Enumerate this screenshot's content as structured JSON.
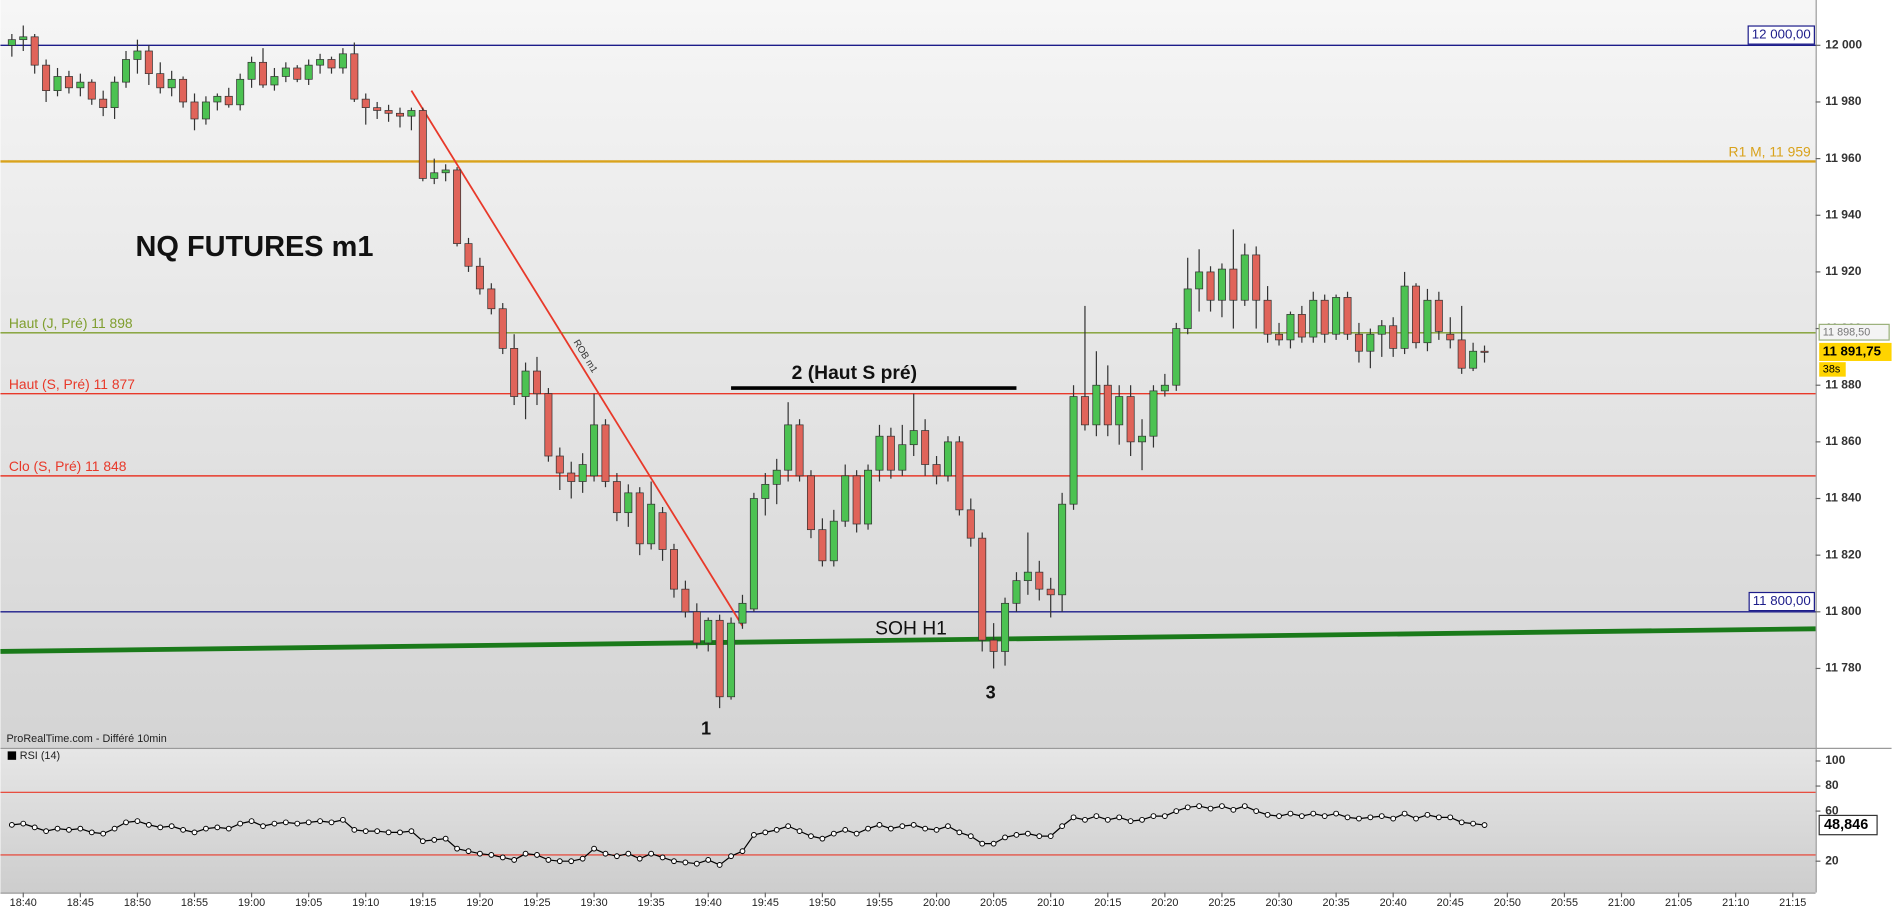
{
  "chart_data": {
    "type": "candlestick",
    "title": "NQ FUTURES m1",
    "source": "ProRealTime.com - Différé 10min",
    "x": [
      "18:39",
      "18:40",
      "18:41",
      "18:42",
      "18:43",
      "18:44",
      "18:45",
      "18:46",
      "18:47",
      "18:48",
      "18:49",
      "18:50",
      "18:51",
      "18:52",
      "18:53",
      "18:54",
      "18:55",
      "18:56",
      "18:57",
      "18:58",
      "18:59",
      "19:00",
      "19:01",
      "19:02",
      "19:03",
      "19:04",
      "19:05",
      "19:06",
      "19:07",
      "19:08",
      "19:09",
      "19:10",
      "19:11",
      "19:12",
      "19:13",
      "19:14",
      "19:15",
      "19:16",
      "19:17",
      "19:18",
      "19:19",
      "19:20",
      "19:21",
      "19:22",
      "19:23",
      "19:24",
      "19:25",
      "19:26",
      "19:27",
      "19:28",
      "19:29",
      "19:30",
      "19:31",
      "19:32",
      "19:33",
      "19:34",
      "19:35",
      "19:36",
      "19:37",
      "19:38",
      "19:39",
      "19:40",
      "19:41",
      "19:42",
      "19:43",
      "19:44",
      "19:45",
      "19:46",
      "19:47",
      "19:48",
      "19:49",
      "19:50",
      "19:51",
      "19:52",
      "19:53",
      "19:54",
      "19:55",
      "19:56",
      "19:57",
      "19:58",
      "19:59",
      "20:00",
      "20:01",
      "20:02",
      "20:03",
      "20:04",
      "20:05",
      "20:06",
      "20:07",
      "20:08",
      "20:09",
      "20:10",
      "20:11",
      "20:12",
      "20:13",
      "20:14",
      "20:15",
      "20:16",
      "20:17",
      "20:18",
      "20:19",
      "20:20",
      "20:21",
      "20:22",
      "20:23",
      "20:24",
      "20:25",
      "20:26",
      "20:27",
      "20:28",
      "20:29",
      "20:30",
      "20:31",
      "20:32",
      "20:33",
      "20:34",
      "20:35",
      "20:36",
      "20:37",
      "20:38",
      "20:39",
      "20:40",
      "20:41",
      "20:42",
      "20:43",
      "20:44",
      "20:45",
      "20:46",
      "20:47",
      "20:48"
    ],
    "open": [
      12000,
      12002,
      12003,
      11993,
      11984,
      11989,
      11985,
      11987,
      11981,
      11978,
      11987,
      11995,
      11998,
      11990,
      11985,
      11988,
      11980,
      11974,
      11980,
      11982,
      11979,
      11988,
      11994,
      11986,
      11989,
      11992,
      11988,
      11993,
      11995,
      11992,
      11997,
      11981,
      11978,
      11977,
      11976,
      11975,
      11977,
      11953,
      11955,
      11956,
      11930,
      11922,
      11914,
      11907,
      11893,
      11876,
      11885,
      11877,
      11855,
      11849,
      11846,
      11848,
      11866,
      11846,
      11835,
      11842,
      11824,
      11835,
      11822,
      11808,
      11800,
      11789,
      11797,
      11770,
      11796,
      11801,
      11840,
      11845,
      11850,
      11866,
      11848,
      11829,
      11818,
      11832,
      11848,
      11831,
      11850,
      11862,
      11850,
      11859,
      11864,
      11852,
      11848,
      11860,
      11836,
      11826,
      11790,
      11786,
      11803,
      11811,
      11814,
      11808,
      11806,
      11838,
      11876,
      11866,
      11880,
      11866,
      11876,
      11860,
      11862,
      11878,
      11880,
      11900,
      11914,
      11920,
      11910,
      11921,
      11910,
      11926,
      11910,
      11898,
      11896,
      11905,
      11897,
      11910,
      11898,
      11911,
      11898,
      11892,
      11898,
      11901,
      11893,
      11915,
      11895,
      11910,
      11898,
      11896,
      11886,
      11892
    ],
    "high": [
      12004,
      12007,
      12004,
      11995,
      11992,
      11991,
      11990,
      11988,
      11984,
      11989,
      11998,
      12002,
      12000,
      11994,
      11991,
      11989,
      11983,
      11982,
      11983,
      11985,
      11990,
      11996,
      11999,
      11992,
      11994,
      11993,
      11995,
      11997,
      11996,
      11999,
      12001,
      11983,
      11980,
      11979,
      11978,
      11978,
      11978,
      11960,
      11958,
      11957,
      11932,
      11925,
      11916,
      11909,
      11898,
      11888,
      11890,
      11879,
      11858,
      11853,
      11856,
      11877,
      11868,
      11849,
      11845,
      11844,
      11846,
      11837,
      11824,
      11811,
      11803,
      11798,
      11799,
      11798,
      11806,
      11842,
      11849,
      11854,
      11874,
      11868,
      11850,
      11833,
      11836,
      11852,
      11850,
      11852,
      11866,
      11865,
      11866,
      11877,
      11868,
      11855,
      11862,
      11862,
      11840,
      11828,
      11796,
      11805,
      11814,
      11828,
      11818,
      11812,
      11842,
      11880,
      11908,
      11892,
      11887,
      11880,
      11880,
      11868,
      11880,
      11884,
      11902,
      11925,
      11928,
      11922,
      11923,
      11935,
      11930,
      11929,
      11915,
      11902,
      11906,
      11908,
      11913,
      11912,
      11912,
      11913,
      11902,
      11900,
      11903,
      11904,
      11920,
      11916,
      11914,
      11913,
      11904,
      11908,
      11895,
      11894
    ],
    "low": [
      11996,
      11998,
      11990,
      11980,
      11982,
      11983,
      11982,
      11979,
      11975,
      11974,
      11985,
      11990,
      11986,
      11983,
      11982,
      11978,
      11970,
      11972,
      11977,
      11978,
      11977,
      11985,
      11985,
      11984,
      11987,
      11987,
      11986,
      11990,
      11990,
      11990,
      11980,
      11972,
      11974,
      11973,
      11971,
      11970,
      11952,
      11951,
      11952,
      11929,
      11920,
      11912,
      11905,
      11891,
      11873,
      11868,
      11873,
      11853,
      11843,
      11840,
      11842,
      11846,
      11844,
      11832,
      11830,
      11820,
      11822,
      11818,
      11805,
      11798,
      11787,
      11786,
      11766,
      11769,
      11794,
      11800,
      11834,
      11838,
      11846,
      11846,
      11826,
      11816,
      11816,
      11830,
      11828,
      11829,
      11846,
      11847,
      11848,
      11855,
      11848,
      11845,
      11846,
      11834,
      11823,
      11786,
      11780,
      11781,
      11800,
      11806,
      11804,
      11798,
      11800,
      11836,
      11864,
      11862,
      11862,
      11859,
      11855,
      11850,
      11858,
      11876,
      11878,
      11898,
      11906,
      11906,
      11904,
      11900,
      11908,
      11900,
      11895,
      11894,
      11893,
      11895,
      11895,
      11895,
      11896,
      11896,
      11888,
      11886,
      11890,
      11890,
      11891,
      11893,
      11892,
      11896,
      11893,
      11884,
      11885,
      11888
    ],
    "close": [
      12002,
      12003,
      11993,
      11984,
      11989,
      11985,
      11987,
      11981,
      11978,
      11987,
      11995,
      11998,
      11990,
      11985,
      11988,
      11980,
      11974,
      11980,
      11982,
      11979,
      11988,
      11994,
      11986,
      11989,
      11992,
      11988,
      11993,
      11995,
      11992,
      11997,
      11981,
      11978,
      11977,
      11976,
      11975,
      11977,
      11953,
      11955,
      11956,
      11930,
      11922,
      11914,
      11907,
      11893,
      11876,
      11885,
      11877,
      11855,
      11849,
      11846,
      11852,
      11866,
      11846,
      11835,
      11842,
      11824,
      11838,
      11822,
      11808,
      11800,
      11789,
      11797,
      11770,
      11796,
      11803,
      11840,
      11845,
      11850,
      11866,
      11848,
      11829,
      11818,
      11832,
      11848,
      11831,
      11850,
      11862,
      11850,
      11859,
      11864,
      11852,
      11848,
      11860,
      11836,
      11826,
      11790,
      11786,
      11803,
      11811,
      11814,
      11808,
      11806,
      11838,
      11876,
      11866,
      11880,
      11866,
      11876,
      11860,
      11862,
      11878,
      11880,
      11900,
      11914,
      11920,
      11910,
      11921,
      11910,
      11926,
      11910,
      11898,
      11896,
      11905,
      11897,
      11910,
      11898,
      11911,
      11898,
      11892,
      11898,
      11901,
      11893,
      11915,
      11895,
      11910,
      11899,
      11896,
      11886,
      11892,
      11891.75
    ],
    "up_color": "#4cc252",
    "down_color": "#e0645a",
    "xlim": [
      "18:38",
      "21:17"
    ],
    "xticks": [
      "18:40",
      "18:45",
      "18:50",
      "18:55",
      "19:00",
      "19:05",
      "19:10",
      "19:15",
      "19:20",
      "19:25",
      "19:30",
      "19:35",
      "19:40",
      "19:45",
      "19:50",
      "19:55",
      "20:00",
      "20:05",
      "20:10",
      "20:15",
      "20:20",
      "20:25",
      "20:30",
      "20:35",
      "20:40",
      "20:45",
      "20:50",
      "20:55",
      "21:00",
      "21:05",
      "21:10",
      "21:15"
    ],
    "ylim": [
      11752,
      12016
    ],
    "yticks": [
      {
        "value": 12000,
        "label": "12 000"
      },
      {
        "value": 11980,
        "label": "11 980"
      },
      {
        "value": 11960,
        "label": "11 960"
      },
      {
        "value": 11940,
        "label": "11 940"
      },
      {
        "value": 11920,
        "label": "11 920"
      },
      {
        "value": 11900,
        "label": "11 900"
      },
      {
        "value": 11880,
        "label": "11 880"
      },
      {
        "value": 11860,
        "label": "11 860"
      },
      {
        "value": 11840,
        "label": "11 840"
      },
      {
        "value": 11820,
        "label": "11 820"
      },
      {
        "value": 11800,
        "label": "11 800"
      },
      {
        "value": 11780,
        "label": "11 780"
      }
    ],
    "last_price_label": "11 891,75",
    "timer": "38s",
    "levels": [
      {
        "label": "12 000,00",
        "value": 12000,
        "color": "#1c1c8a",
        "label_position": "right-box"
      },
      {
        "label": "R1 M, 11 959",
        "value": 11959,
        "color": "#d9a21b",
        "label_position": "right"
      },
      {
        "label": "Haut (J, Pré) 11 898",
        "value": 11898.5,
        "color": "#7f9e2e",
        "label_position": "left",
        "axis_label": "11 898,50"
      },
      {
        "label": "Haut (S, Pré) 11 877",
        "value": 11877,
        "color": "#e8392a",
        "label_position": "left"
      },
      {
        "label": "Clo (S, Pré) 11 848",
        "value": 11848,
        "color": "#e8392a",
        "label_position": "left"
      },
      {
        "label": "11 800,00",
        "value": 11800,
        "color": "#1c1c8a",
        "label_position": "right-box"
      }
    ],
    "lines": [
      {
        "label": "ROB m1",
        "color": "#e8392a",
        "x": [
          "19:14",
          "19:43"
        ],
        "y": [
          11984,
          11795
        ]
      },
      {
        "color": "#1a7a1a",
        "x": [
          "18:38",
          "21:17"
        ],
        "y": [
          11786,
          11794
        ]
      },
      {
        "color": "#000000",
        "x": [
          "19:42",
          "20:07"
        ],
        "y": [
          11879,
          11879
        ]
      }
    ],
    "annotations": [
      "2 (Haut S pré)",
      "SOH H1",
      "1",
      "3"
    ],
    "rsi": {
      "title": "RSI (14)",
      "values": [
        49,
        50,
        47,
        44,
        46,
        45,
        46,
        43,
        42,
        46,
        51,
        52,
        49,
        47,
        48,
        45,
        43,
        46,
        47,
        46,
        50,
        52,
        48,
        50,
        51,
        50,
        51,
        52,
        51,
        53,
        45,
        44,
        44,
        43,
        43,
        44,
        36,
        37,
        38,
        30,
        28,
        26,
        25,
        23,
        21,
        26,
        25,
        21,
        20,
        20,
        22,
        30,
        26,
        24,
        26,
        22,
        26,
        23,
        20,
        19,
        18,
        21,
        17,
        24,
        28,
        41,
        43,
        45,
        48,
        44,
        40,
        38,
        42,
        45,
        42,
        46,
        49,
        46,
        48,
        49,
        46,
        45,
        48,
        43,
        40,
        34,
        34,
        39,
        41,
        42,
        40,
        40,
        48,
        55,
        53,
        56,
        53,
        55,
        52,
        53,
        56,
        56,
        60,
        63,
        64,
        62,
        64,
        61,
        64,
        60,
        57,
        56,
        58,
        56,
        58,
        56,
        58,
        55,
        54,
        55,
        56,
        54,
        58,
        54,
        57,
        55,
        55,
        51,
        50,
        48.846
      ],
      "color": "#000000",
      "ylim": [
        -5,
        109.6
      ],
      "yticks": [
        20,
        60,
        80,
        100
      ],
      "levels": [
        25,
        75
      ],
      "level_color": "#e8392a",
      "value_label": "48,846"
    }
  }
}
